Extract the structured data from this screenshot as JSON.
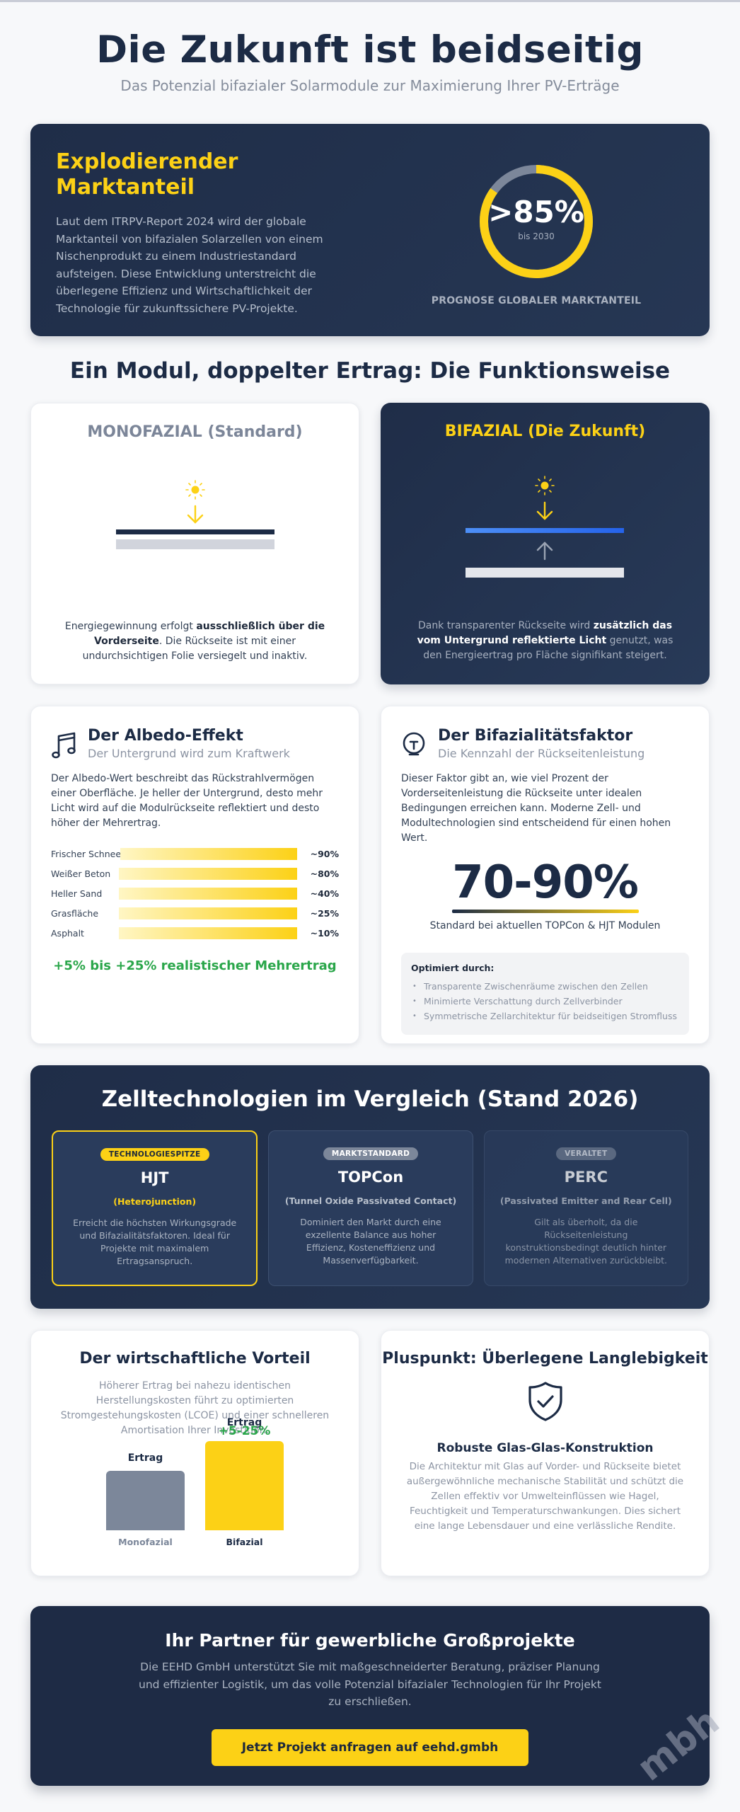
{
  "header": {
    "title": "Die Zukunft ist beidseitig",
    "subtitle": "Das Potenzial bifazialer Solarmodule zur Maximierung Ihrer PV-Erträge"
  },
  "hero": {
    "title": "Explodierender Marktanteil",
    "body": "Laut dem ITRPV-Report 2024 wird der globale Marktanteil von bifazialen Solarzellen von einem Nischenprodukt zu einem Industriestandard aufsteigen. Diese Entwicklung unterstreicht die überlegene Effizienz und Wirtschaftlichkeit der Technologie für zukunftssichere PV-Projekte.",
    "donut": {
      "value": ">85%",
      "sub": "bis 2030",
      "percent": 85,
      "fill_color": "#fcd116",
      "rest_color": "#7c879a"
    },
    "caption": "PROGNOSE GLOBALER MARKTANTEIL"
  },
  "how": {
    "title": "Ein Modul, doppelter Ertrag: Die Funktionsweise",
    "mono": {
      "title": "MONOFAZIAL (Standard)",
      "text_pre": "Energiegewinnung erfolgt ",
      "text_bold": "ausschließlich über die Vorderseite",
      "text_post": ". Die Rückseite ist mit einer undurchsichtigen Folie versiegelt und inaktiv."
    },
    "bi": {
      "title": "BIFAZIAL (Die Zukunft)",
      "text_pre": "Dank transparenter Rückseite wird ",
      "text_bold": "zusätzlich das vom Untergrund reflektierte Licht",
      "text_post": " genutzt, was den Energieertrag pro Fläche signifikant steigert."
    }
  },
  "albedo": {
    "title": "Der Albedo-Effekt",
    "subtitle": "Der Untergrund wird zum Kraftwerk",
    "icon": "music-note-icon",
    "body": "Der Albedo-Wert beschreibt das Rückstrahlvermögen einer Oberfläche. Je heller der Untergrund, desto mehr Licht wird auf die Modulrückseite reflektiert und desto höher der Mehrertrag.",
    "rows": [
      {
        "label": "Frischer Schnee",
        "value": "~90%"
      },
      {
        "label": "Weißer Beton",
        "value": "~80%"
      },
      {
        "label": "Heller Sand",
        "value": "~40%"
      },
      {
        "label": "Grasfläche",
        "value": "~25%"
      },
      {
        "label": "Asphalt",
        "value": "~10%"
      }
    ],
    "highlight": "+5% bis +25% realistischer Mehrertrag"
  },
  "bifaciality": {
    "title": "Der Bifazialitätsfaktor",
    "subtitle": "Die Kennzahl der Rückseitenleistung",
    "icon": "lightbulb-icon",
    "body": "Dieser Faktor gibt an, wie viel Prozent der Vorderseitenleistung die Rückseite unter idealen Bedingungen erreichen kann. Moderne Zell- und Modultechnologien sind entscheidend für einen hohen Wert.",
    "value": "70-90%",
    "caption": "Standard bei aktuellen TOPCon & HJT Modulen",
    "optimized_title": "Optimiert durch:",
    "optimized_items": [
      "Transparente Zwischenräume zwischen den Zellen",
      "Minimierte Verschattung durch Zellverbinder",
      "Symmetrische Zellarchitektur für beidseitigen Stromfluss"
    ]
  },
  "tech": {
    "title": "Zelltechnologien im Vergleich (Stand 2026)",
    "cards": [
      {
        "badge": "TECHNOLOGIESPITZE",
        "name": "HJT",
        "full": "(Heterojunction)",
        "desc": "Erreicht die höchsten Wirkungsgrade und Bifazialitätsfaktoren. Ideal für Projekte mit maximalem Ertragsanspruch."
      },
      {
        "badge": "MARKTSTANDARD",
        "name": "TOPCon",
        "full": "(Tunnel Oxide Passivated Contact)",
        "desc": "Dominiert den Markt durch eine exzellente Balance aus hoher Effizienz, Kosteneffizienz und Massenverfügbarkeit."
      },
      {
        "badge": "VERALTET",
        "name": "PERC",
        "full": "(Passivated Emitter and Rear Cell)",
        "desc": "Gilt als überholt, da die Rückseitenleistung konstruktionsbedingt deutlich hinter modernen Alternativen zurückbleibt."
      }
    ]
  },
  "economy": {
    "title": "Der wirtschaftliche Vorteil",
    "body": "Höherer Ertrag bei nahezu identischen Herstellungskosten führt zu optimierten Stromgestehungskosten (LCOE) und einer schnelleren Amortisation Ihrer Investition.",
    "chart": {
      "bars": [
        {
          "label": "Monofazial",
          "top_label": "Ertrag",
          "color": "#7c879a",
          "height": 84
        },
        {
          "label": "Bifazial",
          "top_label": "Ertrag",
          "increase": "+5-25%",
          "color": "#fcd116",
          "height": 126
        }
      ]
    }
  },
  "durability": {
    "title": "Pluspunkt: Überlegene Langlebigkeit",
    "icon": "shield-check-icon",
    "subtitle": "Robuste Glas-Glas-Konstruktion",
    "body": "Die Architektur mit Glas auf Vorder- und Rückseite bietet außergewöhnliche mechanische Stabilität und schützt die Zellen effektiv vor Umwelteinflüssen wie Hagel, Feuchtigkeit und Temperaturschwankungen. Dies sichert eine lange Lebensdauer und eine verlässliche Rendite."
  },
  "cta": {
    "title": "Ihr Partner für gewerbliche Großprojekte",
    "body": "Die EEHD GmbH unterstützt Sie mit maßgeschneiderter Beratung, präziser Planung und effizienter Logistik, um das volle Potenzial bifazialer Technologien für Ihr Projekt zu erschließen.",
    "button": "Jetzt Projekt anfragen auf eehd.gmbh"
  },
  "watermark": "mbh",
  "colors": {
    "navy": "#1c2b45",
    "yellow": "#fcd116",
    "green": "#2aa64a",
    "gray": "#7c879a",
    "blue": "#3b82f6"
  }
}
